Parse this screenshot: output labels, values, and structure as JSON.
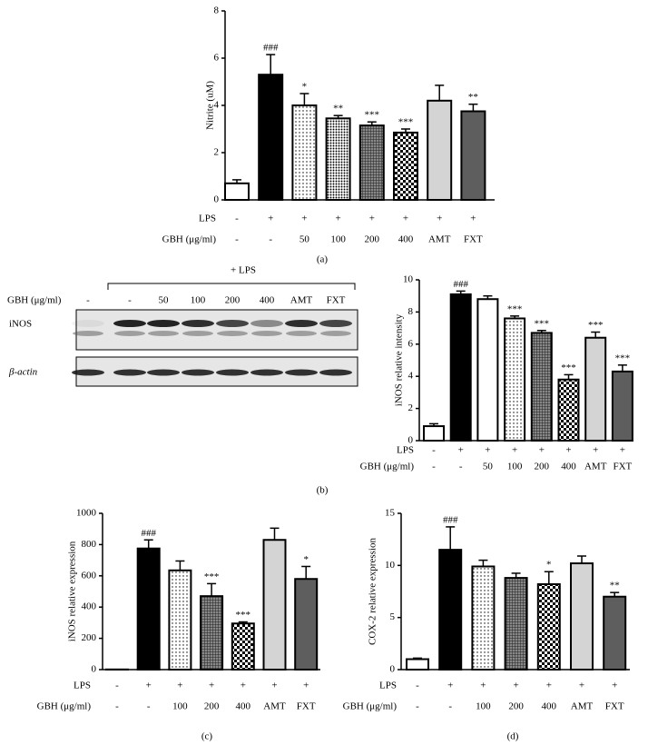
{
  "chart_data": [
    {
      "type": "bar",
      "ylabel": "Nitrite (uM)",
      "caption": "(a)",
      "ylim": [
        0,
        8
      ],
      "yticks": [
        0,
        2,
        4,
        6,
        8
      ],
      "values": [
        0.7,
        5.3,
        4.0,
        3.45,
        3.15,
        2.85,
        4.2,
        3.75
      ],
      "errors": [
        0.15,
        0.85,
        0.5,
        0.12,
        0.15,
        0.15,
        0.65,
        0.3
      ],
      "annotations": [
        null,
        "###",
        "*",
        "**",
        "***",
        "***",
        null,
        "**"
      ],
      "fills": [
        "#ffffff",
        "#000000",
        "dots",
        "dense-dots",
        "grid",
        "checker",
        "#d4d4d4",
        "#5e5e5e"
      ],
      "row_labels": [
        "LPS",
        "GBH (μg/ml)"
      ],
      "rows": [
        [
          "-",
          "+",
          "+",
          "+",
          "+",
          "+",
          "+",
          "+"
        ],
        [
          "-",
          "-",
          "50",
          "100",
          "200",
          "400",
          "AMT",
          "FXT"
        ]
      ]
    },
    {
      "type": "bar",
      "ylabel": "iNOS relative intensity",
      "caption": "(b)",
      "ylim": [
        0,
        10
      ],
      "yticks": [
        0,
        2,
        4,
        6,
        8,
        10
      ],
      "values": [
        0.9,
        9.1,
        8.8,
        7.6,
        6.7,
        3.8,
        6.4,
        4.3
      ],
      "errors": [
        0.15,
        0.2,
        0.2,
        0.15,
        0.15,
        0.3,
        0.35,
        0.4
      ],
      "annotations": [
        null,
        "###",
        null,
        "***",
        "***",
        "***",
        "***",
        "***"
      ],
      "fills": [
        "#ffffff",
        "#000000",
        "#ffffff",
        "dots",
        "grid",
        "checker",
        "#d4d4d4",
        "#5e5e5e"
      ],
      "row_labels": [
        "LPS",
        "GBH (μg/ml)"
      ],
      "rows": [
        [
          "-",
          "+",
          "+",
          "+",
          "+",
          "+",
          "+",
          "+"
        ],
        [
          "-",
          "-",
          "50",
          "100",
          "200",
          "400",
          "AMT",
          "FXT"
        ]
      ]
    },
    {
      "type": "bar",
      "ylabel": "iNOS relative expression",
      "caption": "(c)",
      "ylim": [
        0,
        1000
      ],
      "yticks": [
        0,
        200,
        400,
        600,
        800,
        1000
      ],
      "values": [
        1,
        775,
        635,
        470,
        295,
        830,
        580
      ],
      "errors": [
        0,
        55,
        60,
        80,
        10,
        75,
        80
      ],
      "annotations": [
        null,
        "###",
        null,
        "***",
        "***",
        null,
        "*"
      ],
      "fills": [
        "#ffffff",
        "#000000",
        "dots",
        "grid",
        "checker",
        "#d4d4d4",
        "#5e5e5e"
      ],
      "row_labels": [
        "LPS",
        "GBH (μg/ml)"
      ],
      "rows": [
        [
          "-",
          "+",
          "+",
          "+",
          "+",
          "+",
          "+"
        ],
        [
          "-",
          "-",
          "100",
          "200",
          "400",
          "AMT",
          "FXT"
        ]
      ]
    },
    {
      "type": "bar",
      "ylabel": "COX-2 relative expression",
      "caption": "(d)",
      "ylim": [
        0,
        15
      ],
      "yticks": [
        0,
        5,
        10,
        15
      ],
      "values": [
        1.0,
        11.5,
        9.9,
        8.8,
        8.2,
        10.2,
        7.0
      ],
      "errors": [
        0.1,
        2.2,
        0.6,
        0.45,
        1.2,
        0.7,
        0.4
      ],
      "annotations": [
        null,
        "###",
        null,
        null,
        "*",
        null,
        "**"
      ],
      "fills": [
        "#ffffff",
        "#000000",
        "dots",
        "grid",
        "checker",
        "#d4d4d4",
        "#5e5e5e"
      ],
      "row_labels": [
        "LPS",
        "GBH (μg/ml)"
      ],
      "rows": [
        [
          "-",
          "+",
          "+",
          "+",
          "+",
          "+",
          "+"
        ],
        [
          "-",
          "-",
          "100",
          "200",
          "400",
          "AMT",
          "FXT"
        ]
      ]
    }
  ],
  "blot": {
    "header": "+ LPS",
    "row_label": "GBH (μg/ml)",
    "lanes": [
      "-",
      "-",
      "50",
      "100",
      "200",
      "400",
      "AMT",
      "FXT"
    ],
    "bands": [
      "iNOS",
      "β-actin"
    ]
  }
}
